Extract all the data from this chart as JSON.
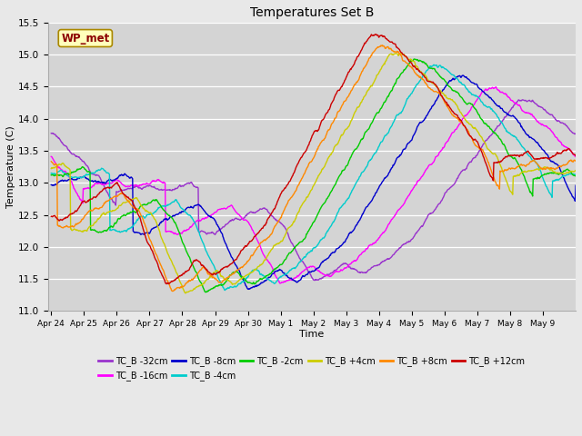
{
  "title": "Temperatures Set B",
  "xlabel": "Time",
  "ylabel": "Temperature (C)",
  "ylim": [
    11.0,
    15.5
  ],
  "bg_color": "#e8e8e8",
  "plot_bg_color": "#d4d4d4",
  "legend_label": "WP_met",
  "series": [
    {
      "label": "TC_B -32cm",
      "color": "#9933cc"
    },
    {
      "label": "TC_B -16cm",
      "color": "#ff00ff"
    },
    {
      "label": "TC_B -8cm",
      "color": "#0000cc"
    },
    {
      "label": "TC_B -4cm",
      "color": "#00cccc"
    },
    {
      "label": "TC_B -2cm",
      "color": "#00cc00"
    },
    {
      "label": "TC_B +4cm",
      "color": "#cccc00"
    },
    {
      "label": "TC_B +8cm",
      "color": "#ff8800"
    },
    {
      "label": "TC_B +12cm",
      "color": "#cc0000"
    }
  ],
  "xtick_labels": [
    "Apr 24",
    "Apr 25",
    "Apr 26",
    "Apr 27",
    "Apr 28",
    "Apr 29",
    "Apr 30",
    "May 1",
    "May 2",
    "May 3",
    "May 4",
    "May 5",
    "May 6",
    "May 7",
    "May 8",
    "May 9"
  ],
  "ytick_labels": [
    "11.0",
    "11.5",
    "12.0",
    "12.5",
    "13.0",
    "13.5",
    "14.0",
    "14.5",
    "15.0",
    "15.5"
  ],
  "ytick_vals": [
    11.0,
    11.5,
    12.0,
    12.5,
    13.0,
    13.5,
    14.0,
    14.5,
    15.0,
    15.5
  ],
  "n_points": 1000,
  "seed": 99
}
